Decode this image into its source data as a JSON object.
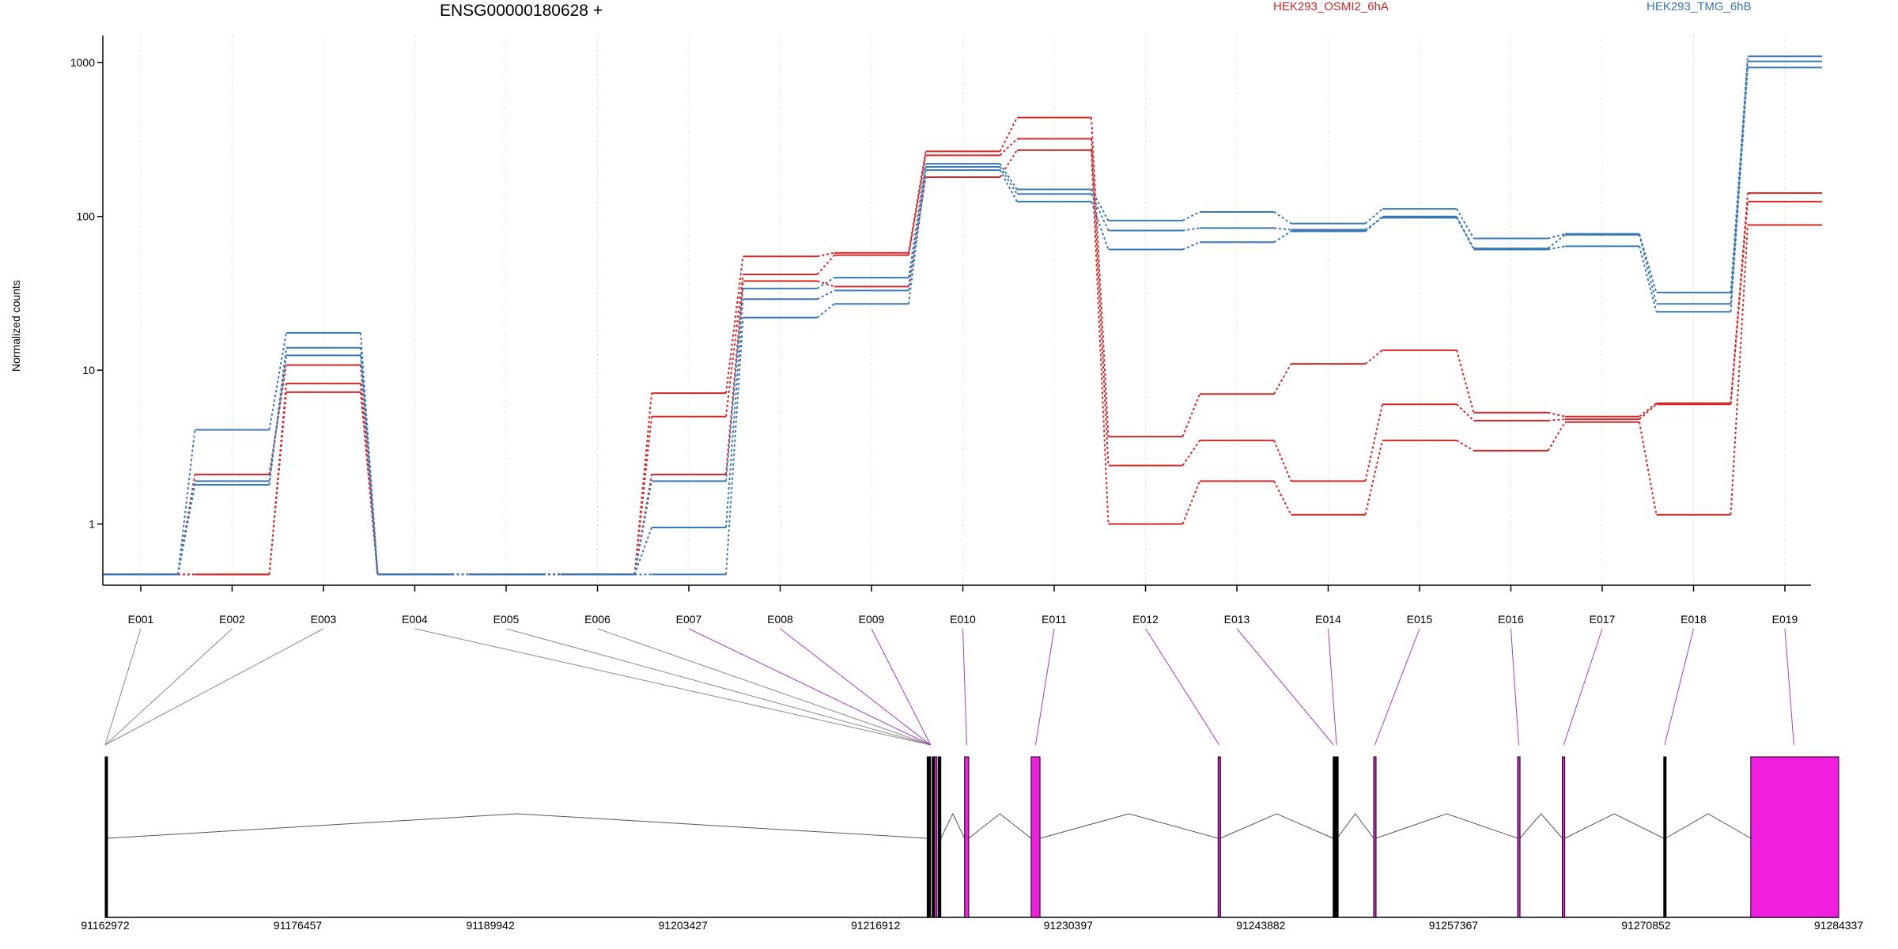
{
  "title": "ENSG00000180628 +",
  "legend": [
    {
      "name": "HEK293_OSMI2_6hA",
      "color": "#d62728"
    },
    {
      "name": "HEK293_TMG_6hB",
      "color": "#3a78b5"
    }
  ],
  "colors": {
    "exon_highlight": "#f01fe0",
    "exon_plain": "#000000",
    "link_gray": "#8a8a8a",
    "link_magenta": "#a040c0"
  },
  "chart_data": {
    "type": "line",
    "ylabel": "Normalized counts",
    "yscale": "log",
    "yticks": [
      1,
      10,
      100,
      1000
    ],
    "ylim": [
      0.4,
      1500
    ],
    "categories": [
      "E001",
      "E002",
      "E003",
      "E004",
      "E005",
      "E006",
      "E007",
      "E008",
      "E009",
      "E010",
      "E011",
      "E012",
      "E013",
      "E014",
      "E015",
      "E016",
      "E017",
      "E018",
      "E019"
    ],
    "series": [
      {
        "group": "HEK293_OSMI2_6hA",
        "values": [
          0.47,
          0.47,
          7.2,
          0.47,
          0.47,
          0.47,
          7.1,
          55,
          58,
          265,
          440,
          3.7,
          7.0,
          11,
          13.5,
          5.3,
          5.0,
          6.1,
          142
        ]
      },
      {
        "group": "HEK293_OSMI2_6hA",
        "values": [
          0.47,
          2.1,
          10.8,
          0.47,
          0.47,
          0.47,
          5.0,
          42,
          56,
          250,
          320,
          2.4,
          3.5,
          1.9,
          6.0,
          4.7,
          4.8,
          6.0,
          125
        ]
      },
      {
        "group": "HEK293_OSMI2_6hA",
        "values": [
          0.47,
          0.47,
          8.2,
          0.47,
          0.47,
          0.47,
          2.1,
          38,
          35,
          180,
          270,
          1.0,
          1.9,
          1.15,
          3.5,
          3.0,
          4.6,
          1.15,
          88
        ]
      },
      {
        "group": "HEK293_TMG_6hB",
        "values": [
          0.47,
          4.1,
          17.5,
          0.47,
          0.47,
          0.47,
          1.9,
          34,
          40,
          220,
          150,
          94,
          107,
          90,
          112,
          72,
          77,
          32,
          1100
        ]
      },
      {
        "group": "HEK293_TMG_6hB",
        "values": [
          0.47,
          1.8,
          14.0,
          0.47,
          0.47,
          0.47,
          0.95,
          29,
          33,
          210,
          140,
          81,
          84,
          82,
          98,
          62,
          76,
          27,
          1020
        ]
      },
      {
        "group": "HEK293_TMG_6hB",
        "values": [
          0.47,
          1.9,
          12.5,
          0.47,
          0.47,
          0.47,
          0.47,
          22,
          27,
          200,
          125,
          61,
          68,
          80,
          100,
          61,
          64,
          24,
          930
        ]
      }
    ],
    "gene_model": {
      "coord_ticks": [
        "91162972",
        "91176457",
        "91189942",
        "91203427",
        "91216912",
        "91230397",
        "91243882",
        "91257367",
        "91270852",
        "91284337"
      ],
      "coord_range": [
        91162972,
        91284337
      ],
      "exons": [
        {
          "start": 91162972,
          "end": 91163072,
          "highlight": false
        },
        {
          "start": 91220520,
          "end": 91220760,
          "highlight": false
        },
        {
          "start": 91220870,
          "end": 91220990,
          "highlight": false
        },
        {
          "start": 91221040,
          "end": 91221210,
          "highlight": true
        },
        {
          "start": 91221300,
          "end": 91221480,
          "highlight": false
        },
        {
          "start": 91223140,
          "end": 91223430,
          "highlight": true
        },
        {
          "start": 91227800,
          "end": 91228420,
          "highlight": true
        },
        {
          "start": 91240890,
          "end": 91241040,
          "highlight": true
        },
        {
          "start": 91248940,
          "end": 91249020,
          "highlight": false
        },
        {
          "start": 91249130,
          "end": 91249220,
          "highlight": false
        },
        {
          "start": 91251780,
          "end": 91251940,
          "highlight": true
        },
        {
          "start": 91261860,
          "end": 91262010,
          "highlight": true
        },
        {
          "start": 91264990,
          "end": 91265160,
          "highlight": true
        },
        {
          "start": 91272090,
          "end": 91272210,
          "highlight": false
        },
        {
          "start": 91278180,
          "end": 91284337,
          "highlight": true
        }
      ],
      "bin_targets": [
        91162972,
        91162972,
        91162972,
        91220760,
        91220760,
        91220760,
        91220760,
        91220760,
        91220760,
        91223290,
        91228110,
        91240970,
        91248980,
        91249180,
        91251860,
        91261940,
        91265080,
        91272150,
        91281200
      ],
      "bin_highlight": [
        false,
        false,
        false,
        false,
        false,
        false,
        true,
        true,
        true,
        true,
        true,
        true,
        true,
        true,
        true,
        true,
        true,
        true,
        true
      ]
    }
  }
}
